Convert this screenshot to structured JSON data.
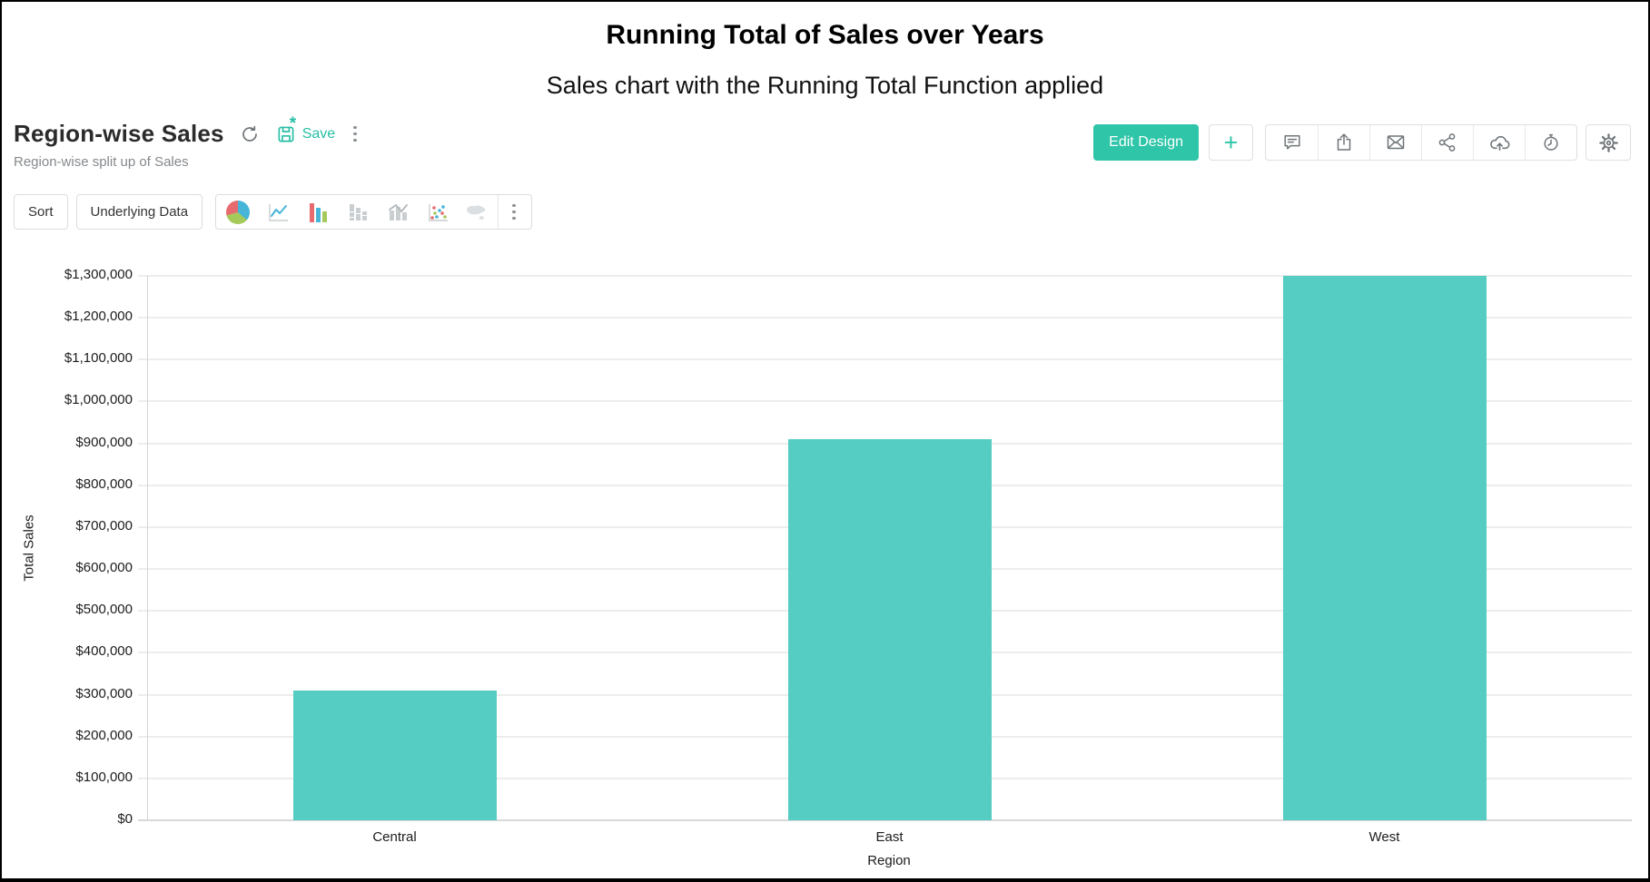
{
  "page": {
    "title": "Running Total of Sales over Years",
    "subtitle": "Sales chart with the Running Total Function applied"
  },
  "report": {
    "title": "Region-wise Sales",
    "description": "Region-wise split up of Sales",
    "save_label": "Save",
    "save_unsaved_marker": "*"
  },
  "header_actions": {
    "edit_design": "Edit Design",
    "add": "+",
    "icons": [
      "comment",
      "export",
      "email",
      "share",
      "cloud-upload",
      "schedule",
      "settings"
    ]
  },
  "toolbar": {
    "sort": "Sort",
    "underlying_data": "Underlying Data",
    "chart_types": [
      "pie",
      "line",
      "bar",
      "stacked-bar",
      "combo",
      "scatter",
      "map"
    ],
    "active_chart_type": "bar"
  },
  "chart_data": {
    "type": "bar",
    "title": "Running Total of Sales over Years",
    "subtitle": "Sales chart with the Running Total Function applied",
    "categories": [
      "Central",
      "East",
      "West"
    ],
    "values": [
      310000,
      910000,
      1300000
    ],
    "xlabel": "Region",
    "ylabel": "Total Sales",
    "ylim": [
      0,
      1300000
    ],
    "ytick_step": 100000,
    "y_tick_labels": [
      "$0",
      "$100,000",
      "$200,000",
      "$300,000",
      "$400,000",
      "$500,000",
      "$600,000",
      "$700,000",
      "$800,000",
      "$900,000",
      "$1,000,000",
      "$1,100,000",
      "$1,200,000",
      "$1,300,000"
    ],
    "grid": true,
    "legend": "none",
    "bar_color": "#55cdc2"
  },
  "colors": {
    "accent": "#2ec5a8",
    "bar": "#55cdc2",
    "icon_red": "#e66a6e",
    "icon_blue": "#47b5d8",
    "icon_green": "#a6c95c",
    "icon_gray": "#c9ced1"
  }
}
